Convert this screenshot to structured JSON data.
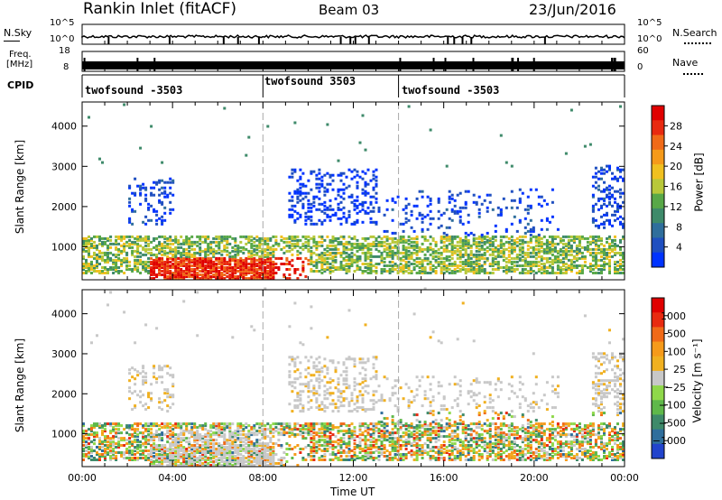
{
  "header": {
    "station": "Rankin Inlet (fitACF)",
    "beam": "Beam 03",
    "date": "23/Jun/2016"
  },
  "noise_panel": {
    "left_label": "N.Sky",
    "left_ticks": [
      "10^5",
      "10^0"
    ],
    "right_label": "N.Search",
    "right_ticks": [
      "10^5",
      "10^0"
    ],
    "right_legend_line": "dotted"
  },
  "freq_panel": {
    "left_label_1": "Freq.",
    "left_label_2": "[MHz]",
    "left_ticks": [
      "18",
      "8"
    ],
    "right_label": "Nave",
    "right_ticks": [
      "60",
      "0"
    ],
    "right_legend_line": "dotted"
  },
  "cpid_panel": {
    "label": "CPID",
    "segments": [
      {
        "start_hour": 0,
        "text": "twofsound -3503"
      },
      {
        "start_hour": 8,
        "text": "twofsound 3503"
      },
      {
        "start_hour": 14,
        "text": "twofsound -3503"
      }
    ]
  },
  "chart_data": [
    {
      "type": "heatmap",
      "name": "power",
      "ylabel": "Slant Range [km]",
      "yticks": [
        1000,
        2000,
        3000,
        4000
      ],
      "ylim": [
        180,
        4600
      ],
      "xlim": [
        0,
        24
      ],
      "colorbar": {
        "label": "Power [dB]",
        "ticks": [
          "4",
          "8",
          "12",
          "16",
          "20",
          "24",
          "28"
        ],
        "colors": [
          "#0033ff",
          "#1f4fc0",
          "#2f6e9c",
          "#3e8a6a",
          "#58a848",
          "#b8c83a",
          "#f0c020",
          "#f59a1a",
          "#f06a18",
          "#e82a10",
          "#e00000"
        ]
      },
      "features": [
        {
          "from_hour": 0,
          "to_hour": 24,
          "range_km": [
            400,
            1200
          ],
          "level": "moderate"
        },
        {
          "from_hour": 3,
          "to_hour": 10,
          "range_km": [
            200,
            700
          ],
          "level": "strong"
        },
        {
          "from_hour": 9,
          "to_hour": 13,
          "range_km": [
            1600,
            2900
          ],
          "level": "weak"
        }
      ]
    },
    {
      "type": "heatmap",
      "name": "velocity",
      "xlabel": "Time UT",
      "ylabel": "Slant Range [km]",
      "yticks": [
        1000,
        2000,
        3000,
        4000
      ],
      "ylim": [
        180,
        4600
      ],
      "xlim": [
        0,
        24
      ],
      "xtick_labels": [
        "00:00",
        "04:00",
        "08:00",
        "12:00",
        "16:00",
        "20:00",
        "00:00"
      ],
      "colorbar": {
        "label": "Velocity [m s⁻¹]",
        "ticks": [
          "1000",
          "500",
          "100",
          "25",
          "−25",
          "−100",
          "−500",
          "−1000"
        ],
        "colors": [
          "#2244cc",
          "#2f6e9c",
          "#3e8a6a",
          "#5fb84a",
          "#8fd84a",
          "#c8c8c8",
          "#f0b020",
          "#f59a1a",
          "#f06a18",
          "#e82a10",
          "#e00000"
        ]
      },
      "features": [
        {
          "from_hour": 3,
          "to_hour": 9,
          "range_km": [
            200,
            1100
          ],
          "level": "ground scatter"
        },
        {
          "from_hour": 0,
          "to_hour": 24,
          "range_km": [
            400,
            1400
          ],
          "level": "mixed"
        }
      ]
    }
  ]
}
